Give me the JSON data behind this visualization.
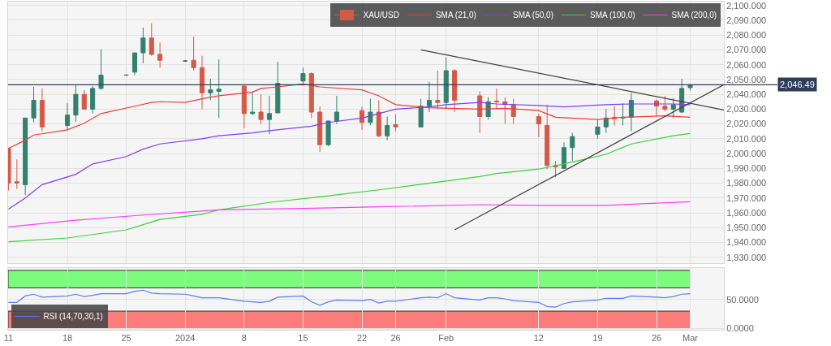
{
  "chart_data": [
    {
      "type": "candlestick",
      "tick_labels": "y",
      "grid": true,
      "legend": "top right",
      "xlim": [
        "2023-12-10T23:00",
        "2024-03-05"
      ],
      "xticks": [
        {
          "value": "2023-12-11",
          "label": null
        },
        {
          "value": "2023-12-18",
          "label": null
        },
        {
          "value": "2023-12-25",
          "label": null
        },
        {
          "value": "2024-01-01",
          "label": null
        },
        {
          "value": "2024-01-08",
          "label": null
        },
        {
          "value": "2024-01-15",
          "label": null
        },
        {
          "value": "2024-01-22",
          "label": null
        },
        {
          "value": "2024-01-26",
          "label": null
        },
        {
          "value": "2024-02-01",
          "label": null
        },
        {
          "value": "2024-02-12",
          "label": null
        },
        {
          "value": "2024-02-19",
          "label": null
        },
        {
          "value": "2024-02-26",
          "label": null
        },
        {
          "value": "2024-03-01",
          "label": null
        }
      ],
      "ylim": [
        1926,
        2102.6
      ],
      "yticks": [
        {
          "value": 1930,
          "label": "1,930.000"
        },
        {
          "value": 1940,
          "label": "1,940.000"
        },
        {
          "value": 1950,
          "label": "1,950.000"
        },
        {
          "value": 1960,
          "label": "1,960.000"
        },
        {
          "value": 1970,
          "label": "1,970.000"
        },
        {
          "value": 1980,
          "label": "1,980.000"
        },
        {
          "value": 1990,
          "label": "1,990.000"
        },
        {
          "value": 2000,
          "label": "2,000.000"
        },
        {
          "value": 2010,
          "label": "2,010.000"
        },
        {
          "value": 2020,
          "label": "2,020.000"
        },
        {
          "value": 2030,
          "label": "2,030.000"
        },
        {
          "value": 2040,
          "label": "2,040.000"
        },
        {
          "value": 2050,
          "label": "2,050.000"
        },
        {
          "value": 2060,
          "label": "2,060.000"
        },
        {
          "value": 2070,
          "label": "2,070.000"
        },
        {
          "value": 2080,
          "label": "2,080.000"
        },
        {
          "value": 2090,
          "label": "2,090.000"
        },
        {
          "value": 2100,
          "label": "2,100.000"
        }
      ],
      "ref_lines": [
        {
          "axis": "y",
          "value": 2046.49,
          "label": "2,046.49",
          "color": "#2c3e5c"
        }
      ],
      "series": [
        {
          "name": "XAU/USD",
          "type": "candlestick",
          "colors": [
            "#d45a48",
            "#d45a48",
            "#33806e",
            "#33806e",
            "#d45a48",
            "#33806e",
            "#33806e",
            "#d45a48",
            "#33806e",
            "#33806e",
            "#555555",
            "#33806e",
            "#33806e",
            "#d45a48",
            "#d45a48",
            "#555555",
            "#d45a48",
            "#d45a48",
            "#33806e",
            "#33806e",
            "#d45a48",
            "#33806e",
            "#d45a48",
            "#33806e",
            "#33806e",
            "#33806e",
            "#d45a48",
            "#d45a48",
            "#33806e",
            "#33806e",
            "#d45a48",
            "#33806e",
            "#d45a48",
            "#33806e",
            "#d45a48",
            "#33806e",
            "#33806e",
            "#d45a48",
            "#33806e",
            "#d45a48",
            "#d45a48",
            "#33806e",
            "#d45a48",
            "#d45a48",
            "#d45a48",
            "#d45a48",
            "#d45a48",
            "#d45a48",
            "#33806e",
            "#33806e",
            "#33806e",
            "#33806e",
            "#d45a48",
            "#33806e",
            "#33806e",
            "#d45a48",
            "#d45a48",
            "#33806e",
            "#33806e",
            "#33806e"
          ],
          "x": [
            "2023-12-11",
            "2023-12-12",
            "2023-12-13",
            "2023-12-14",
            "2023-12-15",
            "2023-12-18",
            "2023-12-19",
            "2023-12-20",
            "2023-12-21",
            "2023-12-22",
            "2023-12-25",
            "2023-12-26",
            "2023-12-27",
            "2023-12-28",
            "2023-12-29",
            "2024-01-01",
            "2024-01-02",
            "2024-01-03",
            "2024-01-04",
            "2024-01-05",
            "2024-01-08",
            "2024-01-09",
            "2024-01-10",
            "2024-01-11",
            "2024-01-12",
            "2024-01-15",
            "2024-01-16",
            "2024-01-17",
            "2024-01-18",
            "2024-01-19",
            "2024-01-22",
            "2024-01-23",
            "2024-01-24",
            "2024-01-25",
            "2024-01-26",
            "2024-01-29",
            "2024-01-30",
            "2024-01-31",
            "2024-02-01",
            "2024-02-02",
            "2024-02-05",
            "2024-02-06",
            "2024-02-07",
            "2024-02-08",
            "2024-02-09",
            "2024-02-12",
            "2024-02-13",
            "2024-02-14",
            "2024-02-15",
            "2024-02-16",
            "2024-02-19",
            "2024-02-20",
            "2024-02-21",
            "2024-02-22",
            "2024-02-23",
            "2024-02-26",
            "2024-02-27",
            "2024-02-28",
            "2024-02-29",
            "2024-03-01"
          ],
          "ohlc": [
            [
              2003.5,
              2004,
              1975,
              1980
            ],
            [
              1981,
              1996,
              1976,
              1980
            ],
            [
              1979,
              2024,
              1972,
              2024
            ],
            [
              2024,
              2045,
              2021,
              2036
            ],
            [
              2036,
              2044,
              2015,
              2018
            ],
            [
              2019,
              2034,
              2016,
              2026
            ],
            [
              2026,
              2046,
              2021.5,
              2040
            ],
            [
              2040,
              2043,
              2030,
              2030
            ],
            [
              2030,
              2045.5,
              2027,
              2044
            ],
            [
              2044,
              2070.5,
              2043,
              2053
            ],
            [
              2053,
              2053.5,
              2052.5,
              2053
            ],
            [
              2055,
              2068,
              2053,
              2068
            ],
            [
              2068,
              2085,
              2061,
              2078
            ],
            [
              2078,
              2088,
              2066,
              2067
            ],
            [
              2067,
              2075,
              2058,
              2063
            ],
            [
              2062.5,
              2063,
              2062,
              2062.5
            ],
            [
              2063,
              2079,
              2056,
              2058
            ],
            [
              2058,
              2066,
              2030,
              2041
            ],
            [
              2041,
              2050.5,
              2036,
              2043
            ],
            [
              2042,
              2063.5,
              2024,
              2043.5
            ],
            [
              2045.5,
              2046,
              2017,
              2027
            ],
            [
              2027,
              2042,
              2026,
              2028
            ],
            [
              2028,
              2040,
              2020,
              2023
            ],
            [
              2023,
              2039,
              2013,
              2027
            ],
            [
              2027.5,
              2062,
              2027,
              2047.5
            ],
            [
              2049,
              2058,
              2046,
              2054
            ],
            [
              2054,
              2055,
              2024,
              2028
            ],
            [
              2028,
              2032,
              2001,
              2006
            ],
            [
              2006,
              2022,
              2005,
              2022
            ],
            [
              2022,
              2039,
              2020,
              2028
            ],
            [
              2029,
              2031.5,
              2016,
              2021
            ],
            [
              2021,
              2037,
              2019,
              2028
            ],
            [
              2028,
              2036,
              2011,
              2012
            ],
            [
              2012,
              2025,
              2009,
              2019
            ],
            [
              2019.5,
              2026.5,
              2015,
              2018
            ],
            [
              2018,
              2037,
              2018,
              2032
            ],
            [
              2032,
              2048.5,
              2028,
              2036
            ],
            [
              2036,
              2056,
              2030,
              2034.5
            ],
            [
              2034.5,
              2065,
              2030,
              2056
            ],
            [
              2056,
              2057,
              2028,
              2036
            ],
            [
              2039,
              2042,
              2014,
              2025
            ],
            [
              2025,
              2038,
              2023,
              2035
            ],
            [
              2035.5,
              2044,
              2030,
              2035
            ],
            [
              2035,
              2038,
              2020,
              2033
            ],
            [
              2033,
              2037,
              2020,
              2025
            ],
            [
              2025,
              2027,
              2011,
              2020
            ],
            [
              2019,
              2033,
              1989.5,
              1992
            ],
            [
              1992,
              1995,
              1984,
              1991
            ],
            [
              1990,
              2007.5,
              1989.5,
              2004
            ],
            [
              2004,
              2014,
              1995,
              2011.5
            ],
            [
              2013,
              2023,
              2010,
              2018
            ],
            [
              2018,
              2030,
              2014,
              2024
            ],
            [
              2024.5,
              2032,
              2019,
              2023.5
            ],
            [
              2024,
              2034,
              2019,
              2024.5
            ],
            [
              2024.5,
              2041,
              2015,
              2036
            ],
            [
              2035.5,
              2036.5,
              2025,
              2032
            ],
            [
              2032,
              2039,
              2028.5,
              2030
            ],
            [
              2030,
              2037.5,
              2024,
              2033
            ],
            [
              2028,
              2050.5,
              2027.5,
              2044
            ],
            [
              2044.5,
              2046.5,
              2042.5,
              2046.49
            ]
          ]
        },
        {
          "name": "SMA (21,0)",
          "type": "line",
          "color": "#f23a3a",
          "x": [
            "2023-12-11",
            "2023-12-13",
            "2023-12-14",
            "2023-12-18",
            "2023-12-20",
            "2023-12-22",
            "2023-12-26",
            "2023-12-28",
            "2023-12-29",
            "2024-01-01",
            "2024-01-03",
            "2024-01-05",
            "2024-01-09",
            "2024-01-10",
            "2024-01-12",
            "2024-01-15",
            "2024-01-17",
            "2024-01-22",
            "2024-01-24",
            "2024-01-26",
            "2024-01-30",
            "2024-02-05",
            "2024-02-08",
            "2024-02-12",
            "2024-02-14",
            "2024-02-19",
            "2024-02-22",
            "2024-02-27",
            "2024-03-01"
          ],
          "values": [
            2003.5,
            2009,
            2012.5,
            2016,
            2020.5,
            2027,
            2032,
            2034.5,
            2035,
            2034.5,
            2037,
            2039,
            2041.5,
            2044,
            2045,
            2047,
            2045,
            2043,
            2039,
            2033,
            2031,
            2030,
            2030.5,
            2029,
            2024.5,
            2023,
            2024.5,
            2025.5,
            2024.5
          ]
        },
        {
          "name": "SMA (50,0)",
          "type": "line",
          "color": "#7b3ff2",
          "x": [
            "2023-12-11",
            "2023-12-13",
            "2023-12-15",
            "2023-12-19",
            "2023-12-21",
            "2023-12-25",
            "2023-12-27",
            "2023-12-29",
            "2024-01-03",
            "2024-01-05",
            "2024-01-09",
            "2024-01-11",
            "2024-01-16",
            "2024-01-18",
            "2024-01-22",
            "2024-01-24",
            "2024-01-26",
            "2024-01-30",
            "2024-02-01",
            "2024-02-05",
            "2024-02-07",
            "2024-02-12",
            "2024-02-15",
            "2024-02-20",
            "2024-02-23",
            "2024-02-28",
            "2024-03-01"
          ],
          "values": [
            1962.5,
            1970,
            1979,
            1986,
            1993,
            1998,
            2003,
            2006.5,
            2010,
            2012,
            2014,
            2015.5,
            2018.5,
            2021,
            2024,
            2027,
            2030,
            2031.5,
            2033,
            2034.5,
            2033.5,
            2032.5,
            2031.5,
            2033,
            2033.5,
            2033.5,
            2033
          ]
        },
        {
          "name": "SMA (100,0)",
          "type": "line",
          "color": "#3ccf3c",
          "x": [
            "2023-12-11",
            "2023-12-18",
            "2023-12-25",
            "2023-12-27",
            "2023-12-29",
            "2024-01-03",
            "2024-01-05",
            "2024-01-11",
            "2024-01-18",
            "2024-01-24",
            "2024-01-30",
            "2024-02-05",
            "2024-02-07",
            "2024-02-12",
            "2024-02-15",
            "2024-02-20",
            "2024-02-23",
            "2024-02-28",
            "2024-03-01"
          ],
          "values": [
            1940.5,
            1943,
            1948.5,
            1952,
            1955.5,
            1959,
            1962,
            1967,
            1971.5,
            1975.5,
            1980,
            1984.5,
            1986.5,
            1989.5,
            1993,
            1999.5,
            2006.5,
            2012,
            2013.5
          ]
        },
        {
          "name": "SMA (200,0)",
          "type": "line",
          "color": "#ff3cff",
          "x": [
            "2023-12-11",
            "2023-12-19",
            "2023-12-27",
            "2024-01-05",
            "2024-01-15",
            "2024-01-24",
            "2024-02-05",
            "2024-02-12",
            "2024-02-20",
            "2024-02-26",
            "2024-03-01"
          ],
          "values": [
            1950.5,
            1955,
            1958.5,
            1962,
            1963,
            1964,
            1965.5,
            1965,
            1965,
            1966.5,
            1967.5
          ]
        },
        {
          "type": "line",
          "color": "#404040",
          "x": [
            "2024-01-29",
            "2024-03-05"
          ],
          "values": [
            2070,
            2029.5
          ]
        },
        {
          "type": "line",
          "color": "#404040",
          "x": [
            "2024-02-02",
            "2024-03-05"
          ],
          "values": [
            1948.5,
            2046.5
          ]
        }
      ]
    },
    {
      "type": "line",
      "grid": true,
      "legend": "bottom left",
      "xlim": [
        "2023-12-10T23:00",
        "2024-03-05"
      ],
      "xticks": [
        {
          "value": "2023-12-11",
          "label": "11"
        },
        {
          "value": "2023-12-18",
          "label": "18"
        },
        {
          "value": "2023-12-25",
          "label": "25"
        },
        {
          "value": "2024-01-01",
          "label": "2024"
        },
        {
          "value": "2024-01-08",
          "label": "8"
        },
        {
          "value": "2024-01-15",
          "label": "15"
        },
        {
          "value": "2024-01-22",
          "label": "22"
        },
        {
          "value": "2024-01-26",
          "label": "26"
        },
        {
          "value": "2024-02-01",
          "label": "Feb"
        },
        {
          "value": "2024-02-12",
          "label": "12"
        },
        {
          "value": "2024-02-19",
          "label": "19"
        },
        {
          "value": "2024-02-26",
          "label": "26"
        },
        {
          "value": "2024-03-01",
          "label": "Mar"
        }
      ],
      "ylim": [
        -2,
        104
      ],
      "yticks": [
        {
          "value": 0,
          "label": "0.0000"
        },
        {
          "value": 50,
          "label": "50.0000"
        }
      ],
      "bands": [
        {
          "axis": "y",
          "from": 70,
          "to": 100,
          "color": "#7cfc7c"
        },
        {
          "axis": "y",
          "from": 0,
          "to": 30,
          "color": "#fc7b7b"
        }
      ],
      "series": [
        {
          "name": "RSI (14,70,30,1)",
          "color": "#5b7cf5",
          "x": [
            "2023-12-11",
            "2023-12-12",
            "2023-12-13",
            "2023-12-14",
            "2023-12-15",
            "2023-12-18",
            "2023-12-19",
            "2023-12-20",
            "2023-12-21",
            "2023-12-22",
            "2023-12-25",
            "2023-12-26",
            "2023-12-27",
            "2023-12-28",
            "2023-12-29",
            "2024-01-01",
            "2024-01-02",
            "2024-01-03",
            "2024-01-04",
            "2024-01-05",
            "2024-01-08",
            "2024-01-09",
            "2024-01-10",
            "2024-01-11",
            "2024-01-12",
            "2024-01-15",
            "2024-01-16",
            "2024-01-17",
            "2024-01-18",
            "2024-01-19",
            "2024-01-22",
            "2024-01-23",
            "2024-01-24",
            "2024-01-25",
            "2024-01-26",
            "2024-01-29",
            "2024-01-30",
            "2024-01-31",
            "2024-02-01",
            "2024-02-02",
            "2024-02-05",
            "2024-02-06",
            "2024-02-07",
            "2024-02-08",
            "2024-02-09",
            "2024-02-12",
            "2024-02-13",
            "2024-02-14",
            "2024-02-15",
            "2024-02-16",
            "2024-02-19",
            "2024-02-20",
            "2024-02-21",
            "2024-02-22",
            "2024-02-23",
            "2024-02-26",
            "2024-02-27",
            "2024-02-28",
            "2024-02-29",
            "2024-03-01"
          ],
          "values": [
            45,
            45,
            56,
            59,
            54,
            56,
            59,
            55,
            57,
            60,
            60,
            64,
            66,
            61,
            60,
            59,
            56,
            53,
            53,
            53,
            47,
            46,
            45,
            47,
            54,
            56,
            46,
            40,
            46,
            49,
            48,
            50,
            44,
            47,
            47,
            53,
            54,
            53,
            60,
            53,
            49,
            53,
            53,
            51,
            48,
            45,
            38,
            37,
            43,
            46,
            49,
            52,
            52,
            52,
            56,
            54,
            53,
            55,
            59,
            60
          ]
        }
      ]
    }
  ]
}
